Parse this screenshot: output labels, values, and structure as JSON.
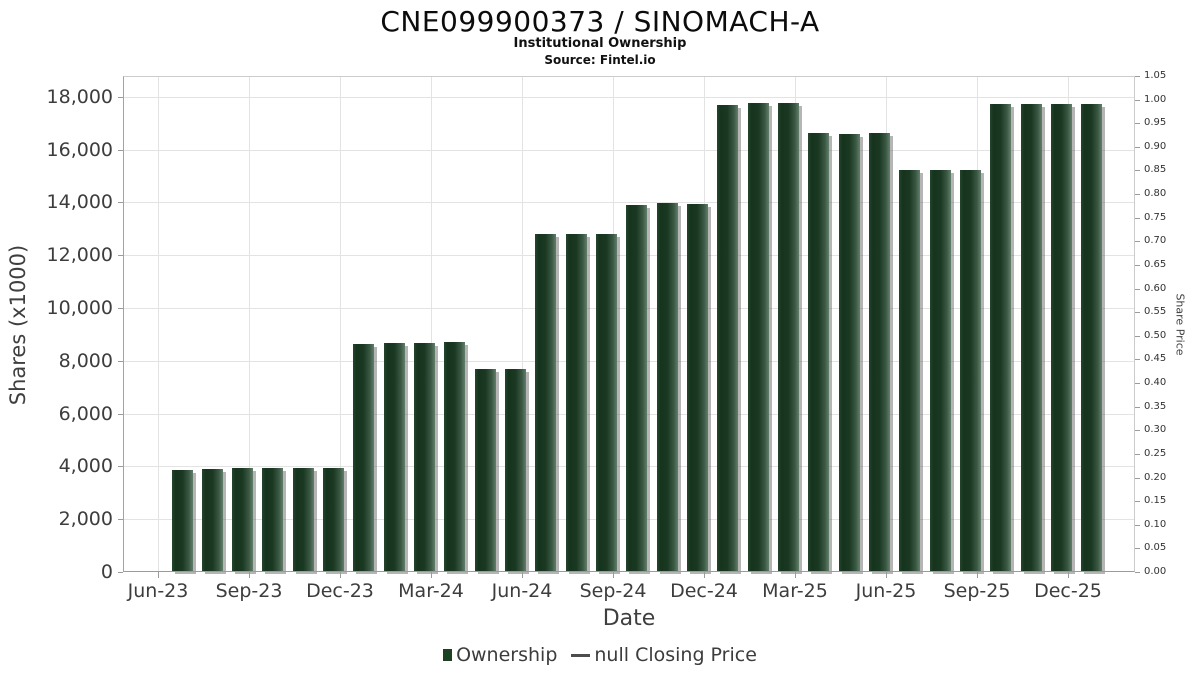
{
  "header": {
    "title": "CNE099900373 / SINOMACH-A",
    "subtitle": "Institutional Ownership",
    "source": "Source: Fintel.io"
  },
  "legend": {
    "ownership_label": "Ownership",
    "price_label": "null Closing Price",
    "ownership_color": "#1d4023",
    "price_line_color": "#4d4d4d",
    "position": "bottom-center"
  },
  "chart_data": {
    "type": "bar",
    "title": "CNE099900373 / SINOMACH-A",
    "subtitle": "Institutional Ownership",
    "source": "Source: Fintel.io",
    "xlabel": "Date",
    "ylabel_left": "Shares (x1000)",
    "ylabel_right": "Share Price",
    "grid": true,
    "bar_color": "#1d4023",
    "x_tick_labels": [
      "Jun-23",
      "Sep-23",
      "Dec-23",
      "Mar-24",
      "Jun-24",
      "Sep-24",
      "Dec-24",
      "Mar-25",
      "Jun-25",
      "Sep-25",
      "Dec-25"
    ],
    "y_left_axis": {
      "min": 0,
      "max": 18000,
      "step": 2000,
      "tick_labels": [
        "0",
        "2,000",
        "4,000",
        "6,000",
        "8,000",
        "10,000",
        "12,000",
        "14,000",
        "16,000",
        "18,000"
      ]
    },
    "y_right_axis": {
      "min": 0.0,
      "max": 1.05,
      "step": 0.05,
      "tick_labels": [
        "0.00",
        "0.05",
        "0.10",
        "0.15",
        "0.20",
        "0.25",
        "0.30",
        "0.35",
        "0.40",
        "0.45",
        "0.50",
        "0.55",
        "0.60",
        "0.65",
        "0.70",
        "0.75",
        "0.80",
        "0.85",
        "0.90",
        "0.95",
        "1.00",
        "1.05"
      ]
    },
    "categories": [
      "Jul-23",
      "Aug-23",
      "Sep-23",
      "Oct-23",
      "Nov-23",
      "Dec-23",
      "Jan-24",
      "Feb-24",
      "Mar-24",
      "Apr-24",
      "May-24",
      "Jun-24",
      "Jul-24",
      "Aug-24",
      "Sep-24",
      "Oct-24",
      "Nov-24",
      "Dec-24",
      "Jan-25",
      "Feb-25",
      "Mar-25",
      "Apr-25",
      "May-25",
      "Jun-25",
      "Jul-25",
      "Aug-25",
      "Sep-25",
      "Oct-25",
      "Nov-25",
      "Dec-25",
      "Jan-26"
    ],
    "series": [
      {
        "name": "Ownership",
        "values": [
          3860,
          3890,
          3930,
          3920,
          3920,
          3920,
          8640,
          8660,
          8660,
          8700,
          7680,
          7680,
          12790,
          12790,
          12790,
          13890,
          13960,
          13940,
          17700,
          17780,
          17780,
          16620,
          16600,
          16610,
          15210,
          15210,
          15210,
          17730,
          17730,
          17730,
          17730
        ]
      },
      {
        "name": "null Closing Price",
        "values": []
      }
    ]
  }
}
